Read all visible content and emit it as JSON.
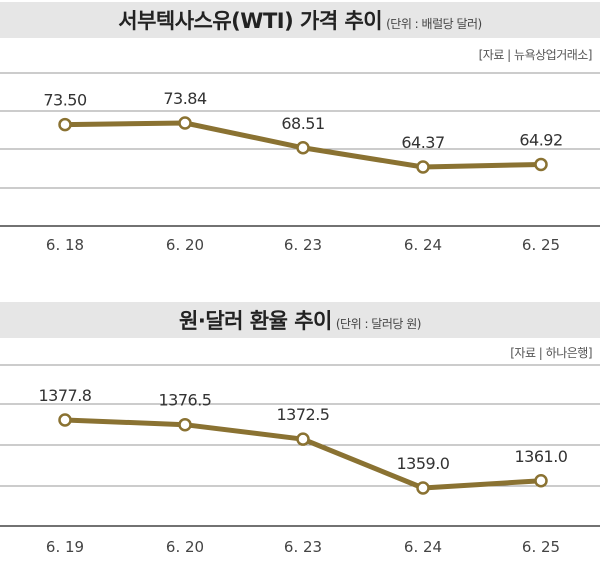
{
  "chart_data": [
    {
      "type": "line",
      "title": "서부텍사스유(WTI) 가격 추이",
      "subtitle": "(단위 : 배럴당 달러)",
      "source": "[자료 | 뉴욕상업거래소]",
      "categories": [
        "6. 18",
        "6. 20",
        "6. 23",
        "6. 24",
        "6. 25"
      ],
      "values": [
        73.5,
        73.84,
        68.51,
        64.37,
        64.92
      ],
      "value_labels": [
        "73.50",
        "73.84",
        "68.51",
        "64.37",
        "64.92"
      ],
      "grid": true,
      "line_color": "#8a7232"
    },
    {
      "type": "line",
      "title": "원·달러 환율 추이",
      "subtitle": "(단위 : 달러당 원)",
      "source": "[자료 | 하나은행]",
      "categories": [
        "6. 19",
        "6. 20",
        "6. 23",
        "6. 24",
        "6. 25"
      ],
      "values": [
        1377.8,
        1376.5,
        1372.5,
        1359.0,
        1361.0
      ],
      "value_labels": [
        "1377.8",
        "1376.5",
        "1372.5",
        "1359.0",
        "1361.0"
      ],
      "grid": true,
      "line_color": "#8a7232"
    }
  ]
}
